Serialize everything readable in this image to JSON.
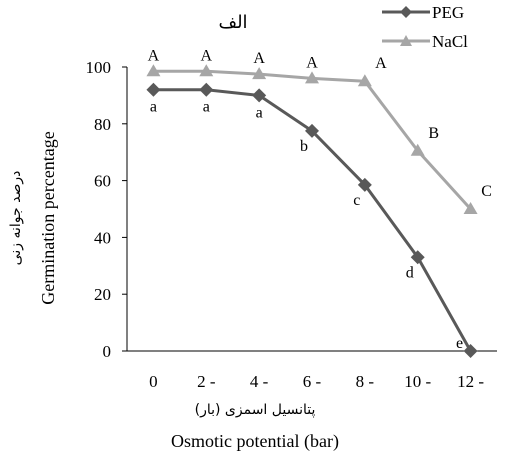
{
  "chart_data": {
    "type": "line",
    "title": "الف",
    "xlabel": "Osmotic potential (bar)",
    "xlabel_fa": "پتانسیل اسمزی (بار)",
    "ylabel": "Germination percentage",
    "ylabel_fa": "درصد جوانه زنی",
    "categories": [
      "0",
      "2 -",
      "4 -",
      "6 -",
      "8 -",
      "10 -",
      "12 -"
    ],
    "ylim": [
      0,
      100
    ],
    "yticks": [
      0,
      20,
      40,
      60,
      80,
      100
    ],
    "grid": false,
    "legend_position": "top-right",
    "series": [
      {
        "name": "PEG",
        "color": "#595959",
        "marker": "diamond",
        "values": [
          92,
          92,
          90,
          77.5,
          58.5,
          33,
          0
        ],
        "labels": [
          "a",
          "a",
          "a",
          "b",
          "c",
          "d",
          "e"
        ]
      },
      {
        "name": "NaCl",
        "color": "#a6a6a6",
        "marker": "triangle",
        "values": [
          98.5,
          98.5,
          97.5,
          96,
          95,
          70.5,
          50
        ],
        "labels": [
          "A",
          "A",
          "A",
          "A",
          "A",
          "B",
          "C"
        ]
      }
    ]
  }
}
